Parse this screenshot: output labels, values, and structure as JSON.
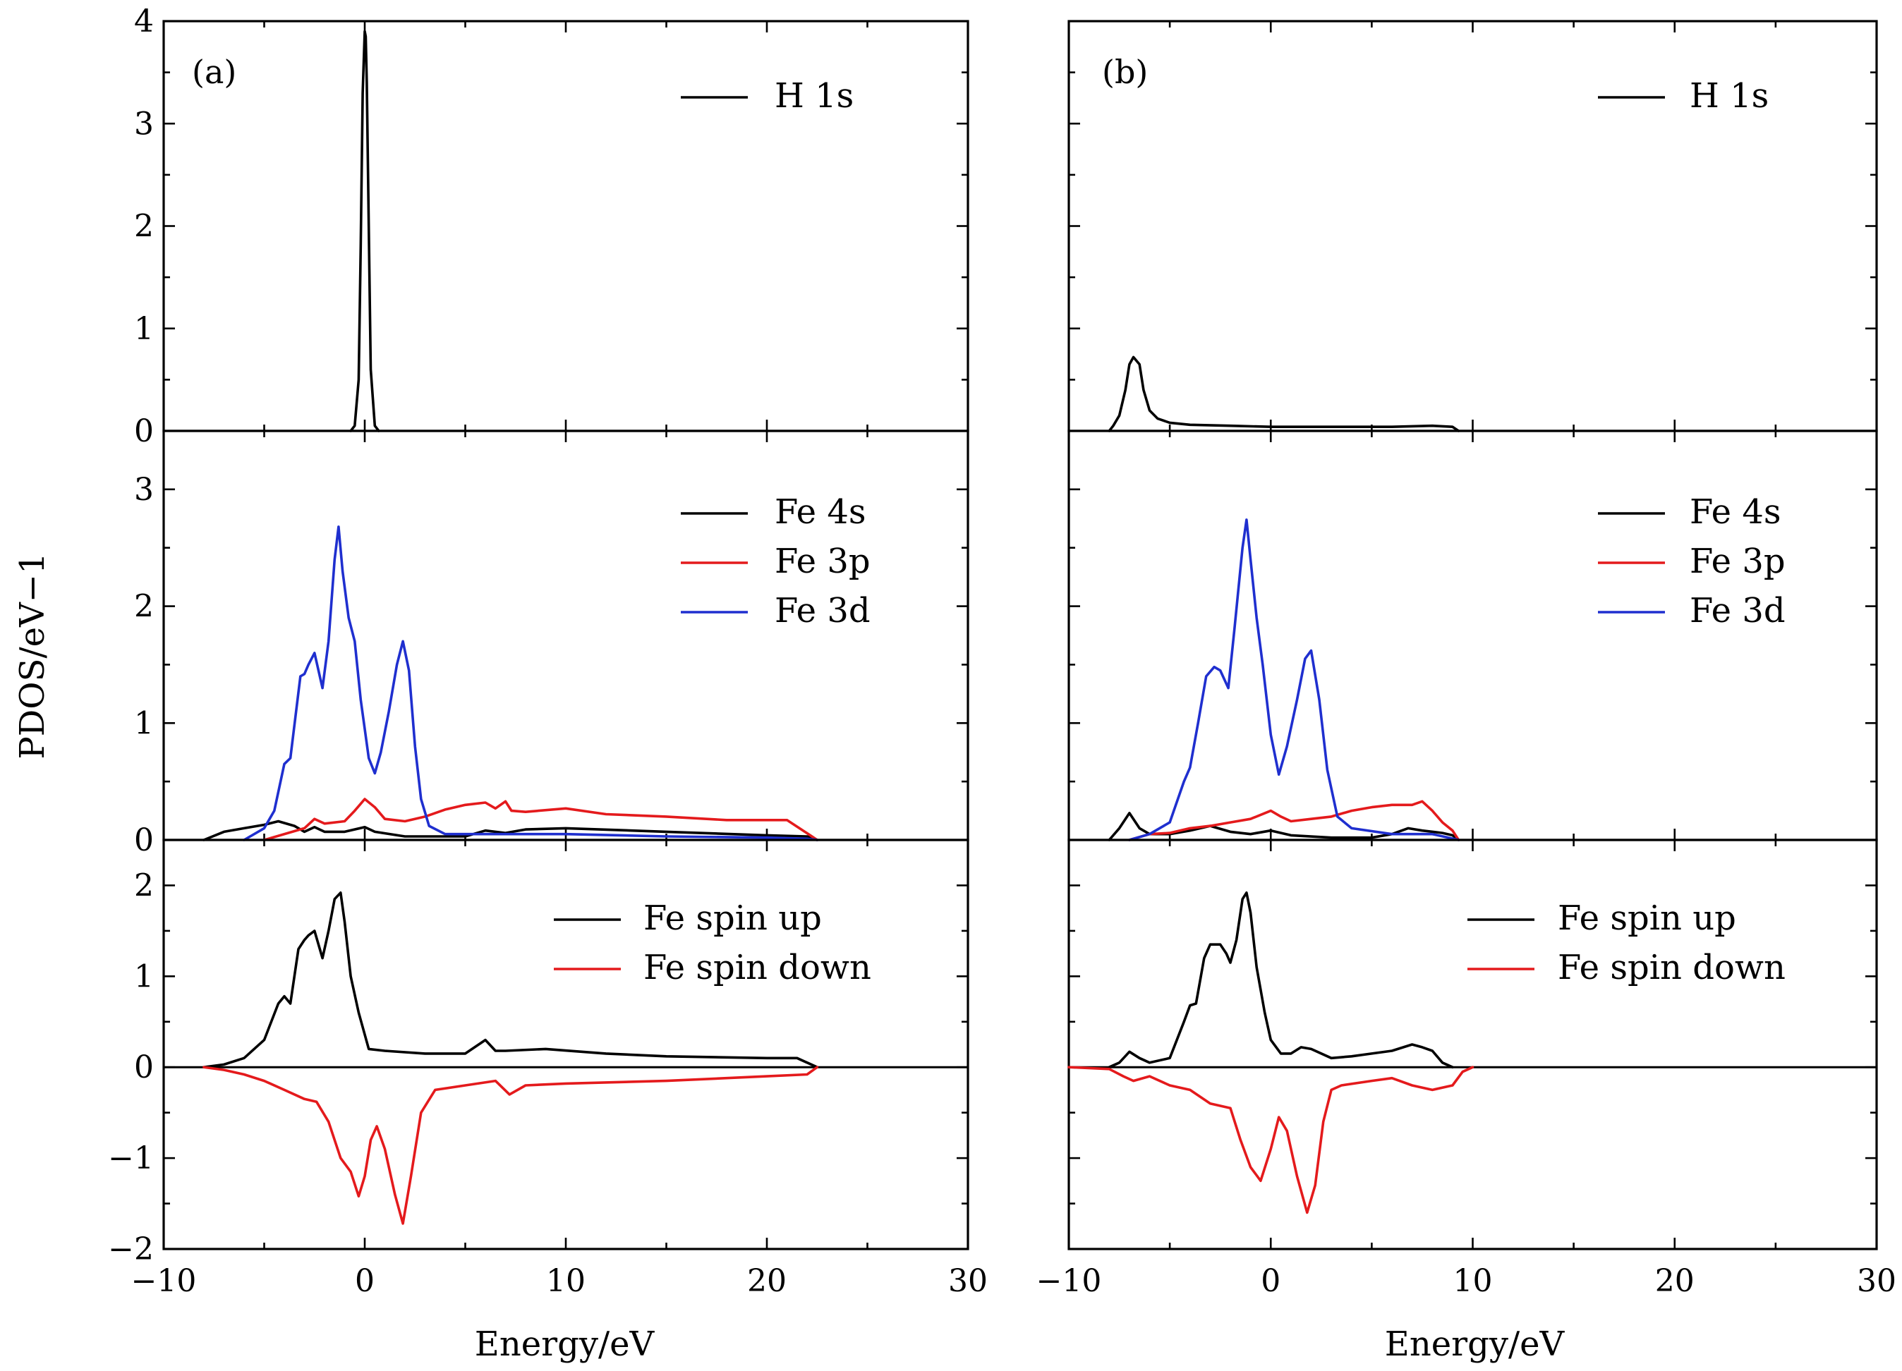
{
  "figure": {
    "xlabel": "Energy/eV",
    "ylabel": "PDOS/eV−1",
    "panel_labels": [
      "(a)",
      "(b)"
    ]
  },
  "colors": {
    "black": "#000000",
    "red": "#e41a1c",
    "blue": "#1f2fcf"
  },
  "chart_data": [
    {
      "type": "line",
      "panel": "(a)",
      "row": "top",
      "title": "",
      "xlim": [
        -10,
        30
      ],
      "ylim": [
        0,
        4
      ],
      "yticks": [
        0,
        1,
        2,
        3,
        4
      ],
      "ytick_labels": [
        "0",
        "1",
        "2",
        "3",
        "4"
      ],
      "series": [
        {
          "name": "H 1s",
          "color": "black",
          "x": [
            -0.7,
            -0.5,
            -0.3,
            -0.2,
            -0.1,
            0,
            0.05,
            0.1,
            0.2,
            0.3,
            0.5,
            0.7
          ],
          "y": [
            0,
            0.05,
            0.5,
            1.8,
            3.3,
            3.9,
            3.85,
            3.4,
            2.0,
            0.6,
            0.05,
            0
          ]
        }
      ]
    },
    {
      "type": "line",
      "panel": "(a)",
      "row": "middle",
      "title": "",
      "xlim": [
        -10,
        30
      ],
      "ylim": [
        0,
        3.5
      ],
      "yticks": [
        0,
        1,
        2,
        3
      ],
      "ytick_labels": [
        "0",
        "1",
        "2",
        "3"
      ],
      "series": [
        {
          "name": "Fe 4s",
          "color": "black",
          "x": [
            -8,
            -7,
            -6,
            -5,
            -4.3,
            -3.5,
            -3,
            -2.5,
            -2,
            -1,
            0,
            0.5,
            2,
            5,
            6,
            7,
            8,
            10,
            15,
            20,
            22,
            22.5
          ],
          "y": [
            0,
            0.07,
            0.1,
            0.13,
            0.16,
            0.12,
            0.07,
            0.11,
            0.07,
            0.07,
            0.11,
            0.07,
            0.03,
            0.03,
            0.08,
            0.06,
            0.09,
            0.1,
            0.07,
            0.04,
            0.03,
            0
          ]
        },
        {
          "name": "Fe 3p",
          "color": "red",
          "x": [
            -5,
            -3,
            -2.5,
            -2,
            -1,
            -0.5,
            0,
            0.5,
            1,
            2,
            3,
            4,
            5,
            6,
            6.5,
            7,
            7.3,
            8,
            10,
            12,
            15,
            18,
            21,
            21.8,
            22.5
          ],
          "y": [
            0,
            0.1,
            0.18,
            0.14,
            0.16,
            0.25,
            0.35,
            0.28,
            0.18,
            0.16,
            0.2,
            0.26,
            0.3,
            0.32,
            0.27,
            0.33,
            0.25,
            0.24,
            0.27,
            0.22,
            0.2,
            0.17,
            0.17,
            0.08,
            0
          ]
        },
        {
          "name": "Fe 3d",
          "color": "blue",
          "x": [
            -6,
            -5,
            -4.5,
            -4,
            -3.7,
            -3.2,
            -3,
            -2.8,
            -2.5,
            -2.1,
            -1.8,
            -1.5,
            -1.3,
            -1.1,
            -0.8,
            -0.5,
            -0.2,
            0.2,
            0.5,
            0.8,
            1.2,
            1.6,
            1.9,
            2.2,
            2.5,
            2.8,
            3.2,
            4,
            6,
            10,
            15,
            20,
            22,
            22.5
          ],
          "y": [
            0,
            0.1,
            0.25,
            0.65,
            0.7,
            1.4,
            1.42,
            1.5,
            1.6,
            1.3,
            1.7,
            2.4,
            2.68,
            2.3,
            1.9,
            1.7,
            1.2,
            0.7,
            0.57,
            0.75,
            1.1,
            1.5,
            1.7,
            1.45,
            0.8,
            0.35,
            0.12,
            0.05,
            0.05,
            0.05,
            0.03,
            0.02,
            0.01,
            0
          ]
        }
      ],
      "legend": [
        "Fe 4s",
        "Fe 3p",
        "Fe 3d"
      ]
    },
    {
      "type": "line",
      "panel": "(a)",
      "row": "bottom",
      "title": "",
      "xlim": [
        -10,
        30
      ],
      "ylim": [
        -2,
        2.5
      ],
      "yticks": [
        -2,
        -1,
        0,
        1,
        2
      ],
      "ytick_labels": [
        "−2",
        "−1",
        "0",
        "1",
        "2"
      ],
      "series": [
        {
          "name": "Fe spin up",
          "color": "black",
          "x": [
            -8,
            -7,
            -6,
            -5,
            -4.3,
            -4,
            -3.7,
            -3.3,
            -3,
            -2.8,
            -2.5,
            -2.1,
            -1.8,
            -1.5,
            -1.2,
            -1,
            -0.7,
            -0.3,
            0.2,
            1,
            3,
            5,
            6,
            6.5,
            7,
            9,
            12,
            15,
            20,
            21.5,
            22.5
          ],
          "y": [
            0,
            0.03,
            0.1,
            0.3,
            0.7,
            0.78,
            0.7,
            1.3,
            1.4,
            1.45,
            1.5,
            1.2,
            1.5,
            1.85,
            1.92,
            1.6,
            1.0,
            0.6,
            0.2,
            0.18,
            0.15,
            0.15,
            0.3,
            0.18,
            0.18,
            0.2,
            0.15,
            0.12,
            0.1,
            0.1,
            0
          ]
        },
        {
          "name": "Fe spin down",
          "color": "red",
          "x": [
            -8,
            -7,
            -6,
            -5,
            -4,
            -3,
            -2.4,
            -1.8,
            -1.2,
            -0.7,
            -0.3,
            0,
            0.3,
            0.6,
            1,
            1.5,
            1.9,
            2.3,
            2.8,
            3.5,
            5,
            6.5,
            7.2,
            8,
            10,
            15,
            20,
            22,
            22.5
          ],
          "y": [
            0,
            -0.03,
            -0.08,
            -0.15,
            -0.25,
            -0.35,
            -0.38,
            -0.6,
            -1.0,
            -1.15,
            -1.42,
            -1.2,
            -0.8,
            -0.65,
            -0.9,
            -1.4,
            -1.72,
            -1.2,
            -0.5,
            -0.25,
            -0.2,
            -0.15,
            -0.3,
            -0.2,
            -0.18,
            -0.15,
            -0.1,
            -0.08,
            0
          ]
        }
      ],
      "legend": [
        "Fe spin up",
        "Fe spin down"
      ]
    },
    {
      "type": "line",
      "panel": "(b)",
      "row": "top",
      "title": "",
      "xlim": [
        -10,
        30
      ],
      "ylim": [
        0,
        4
      ],
      "yticks": [
        0,
        1,
        2,
        3,
        4
      ],
      "ytick_labels": [
        "",
        "",
        "",
        "",
        ""
      ],
      "series": [
        {
          "name": "H 1s",
          "color": "black",
          "x": [
            -8,
            -7.8,
            -7.5,
            -7.2,
            -7,
            -6.8,
            -6.5,
            -6.3,
            -6,
            -5.6,
            -5,
            -4,
            -2,
            0,
            2,
            4,
            6,
            8,
            9,
            9.3
          ],
          "y": [
            0,
            0.05,
            0.15,
            0.4,
            0.65,
            0.72,
            0.65,
            0.4,
            0.2,
            0.12,
            0.08,
            0.06,
            0.05,
            0.04,
            0.04,
            0.04,
            0.04,
            0.05,
            0.04,
            0
          ]
        }
      ]
    },
    {
      "type": "line",
      "panel": "(b)",
      "row": "middle",
      "title": "",
      "xlim": [
        -10,
        30
      ],
      "ylim": [
        0,
        3.5
      ],
      "yticks": [
        0,
        1,
        2,
        3
      ],
      "ytick_labels": [
        "",
        "",
        "",
        ""
      ],
      "series": [
        {
          "name": "Fe 4s",
          "color": "black",
          "x": [
            -8,
            -7.5,
            -7,
            -6.5,
            -6,
            -5,
            -4,
            -3,
            -2,
            -1,
            0,
            1,
            3,
            5,
            6,
            6.8,
            7.5,
            8.5,
            9,
            9.3
          ],
          "y": [
            0,
            0.1,
            0.23,
            0.1,
            0.05,
            0.05,
            0.08,
            0.12,
            0.07,
            0.05,
            0.08,
            0.04,
            0.02,
            0.02,
            0.05,
            0.1,
            0.08,
            0.06,
            0.04,
            0
          ]
        },
        {
          "name": "Fe 3p",
          "color": "red",
          "x": [
            -7,
            -6,
            -5,
            -4,
            -3,
            -2,
            -1,
            0,
            0.5,
            1,
            2,
            3,
            4,
            5,
            6,
            7,
            7.5,
            8,
            8.5,
            9,
            9.3
          ],
          "y": [
            0,
            0.05,
            0.06,
            0.1,
            0.12,
            0.15,
            0.18,
            0.25,
            0.2,
            0.16,
            0.18,
            0.2,
            0.25,
            0.28,
            0.3,
            0.3,
            0.33,
            0.25,
            0.15,
            0.08,
            0
          ]
        },
        {
          "name": "Fe 3d",
          "color": "blue",
          "x": [
            -7,
            -6,
            -5,
            -4.3,
            -4,
            -3.6,
            -3.2,
            -2.8,
            -2.5,
            -2.1,
            -1.8,
            -1.4,
            -1.2,
            -1.0,
            -0.7,
            -0.4,
            0,
            0.4,
            0.8,
            1.3,
            1.7,
            2,
            2.4,
            2.8,
            3.3,
            4,
            6,
            8,
            9.3
          ],
          "y": [
            0,
            0.05,
            0.15,
            0.5,
            0.62,
            1.0,
            1.4,
            1.48,
            1.45,
            1.3,
            1.8,
            2.5,
            2.74,
            2.4,
            1.9,
            1.5,
            0.9,
            0.56,
            0.8,
            1.2,
            1.55,
            1.62,
            1.2,
            0.6,
            0.2,
            0.1,
            0.05,
            0.05,
            0
          ]
        }
      ],
      "legend": [
        "Fe 4s",
        "Fe 3p",
        "Fe 3d"
      ]
    },
    {
      "type": "line",
      "panel": "(b)",
      "row": "bottom",
      "title": "",
      "xlim": [
        -10,
        30
      ],
      "ylim": [
        -2,
        2.5
      ],
      "yticks": [
        -2,
        -1,
        0,
        1,
        2
      ],
      "ytick_labels": [
        "",
        "",
        "",
        "",
        ""
      ],
      "series": [
        {
          "name": "Fe spin up",
          "color": "black",
          "x": [
            -8,
            -7.5,
            -7,
            -6.5,
            -6,
            -5,
            -4.3,
            -4,
            -3.7,
            -3.3,
            -3,
            -2.5,
            -2.2,
            -2,
            -1.7,
            -1.4,
            -1.2,
            -1,
            -0.7,
            -0.3,
            0,
            0.5,
            1,
            1.5,
            2,
            3,
            4,
            5,
            6,
            7,
            7.5,
            8,
            8.5,
            9
          ],
          "y": [
            0,
            0.05,
            0.17,
            0.1,
            0.05,
            0.1,
            0.5,
            0.68,
            0.7,
            1.2,
            1.35,
            1.35,
            1.25,
            1.15,
            1.4,
            1.85,
            1.92,
            1.7,
            1.1,
            0.6,
            0.3,
            0.15,
            0.15,
            0.22,
            0.2,
            0.1,
            0.12,
            0.15,
            0.18,
            0.25,
            0.22,
            0.18,
            0.05,
            0
          ]
        },
        {
          "name": "Fe spin down",
          "color": "red",
          "x": [
            -10,
            -8,
            -7.3,
            -6.8,
            -6,
            -5,
            -4,
            -3,
            -2,
            -1.5,
            -1,
            -0.5,
            0,
            0.4,
            0.8,
            1.3,
            1.8,
            2.2,
            2.6,
            3,
            3.5,
            5,
            6,
            7,
            8,
            9,
            9.5,
            10
          ],
          "y": [
            0,
            -0.02,
            -0.1,
            -0.15,
            -0.1,
            -0.2,
            -0.25,
            -0.4,
            -0.45,
            -0.8,
            -1.1,
            -1.25,
            -0.9,
            -0.55,
            -0.7,
            -1.2,
            -1.6,
            -1.3,
            -0.6,
            -0.25,
            -0.2,
            -0.15,
            -0.12,
            -0.2,
            -0.25,
            -0.2,
            -0.05,
            0
          ]
        }
      ],
      "legend": [
        "Fe spin up",
        "Fe spin down"
      ]
    }
  ],
  "xticks": [
    -10,
    0,
    10,
    20,
    30
  ],
  "xtick_labels": [
    "−10",
    "0",
    "10",
    "20",
    "30"
  ]
}
